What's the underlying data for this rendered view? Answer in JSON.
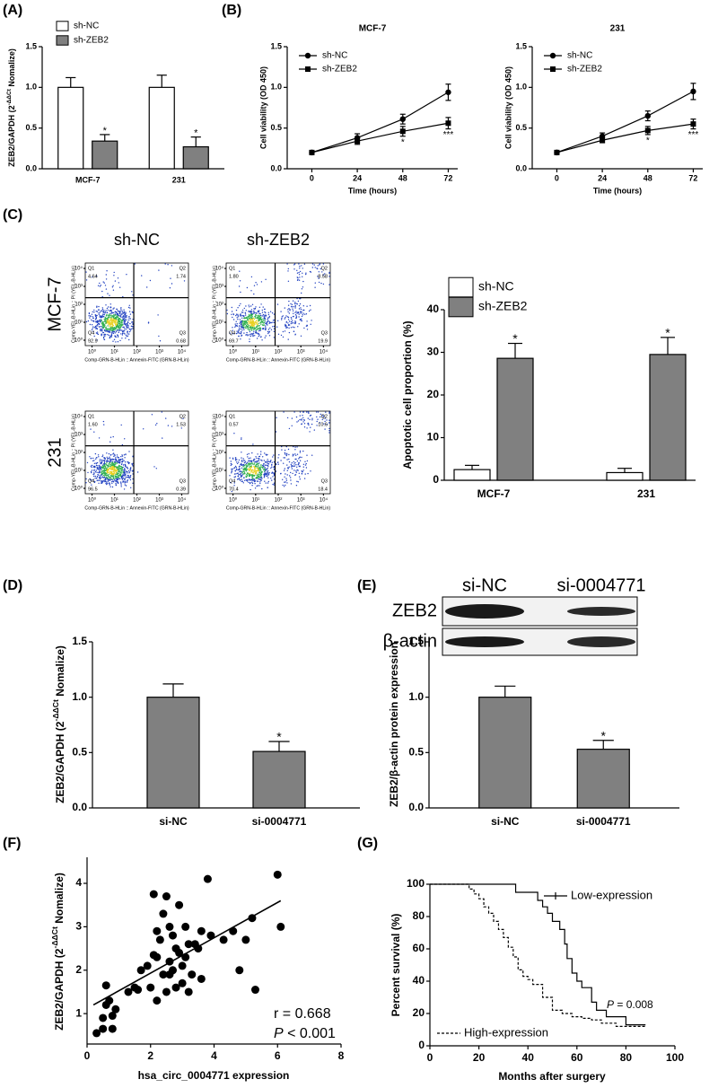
{
  "chart_data": [
    {
      "type": "bar",
      "panel": "(A)",
      "y_label": [
        "ZEB2/GAPDH (2",
        "-ΔΔCt",
        " Nomalize)"
      ],
      "categories": [
        "MCF-7",
        "231"
      ],
      "series": [
        {
          "name": "sh-NC",
          "color": "#ffffff",
          "values": [
            1.0,
            1.0
          ],
          "errors": [
            0.12,
            0.15
          ],
          "sig": [
            null,
            null
          ]
        },
        {
          "name": "sh-ZEB2",
          "color": "#808080",
          "values": [
            0.34,
            0.27
          ],
          "errors": [
            0.08,
            0.12
          ],
          "sig": [
            "*",
            "*"
          ]
        }
      ],
      "ylim": [
        0,
        1.5
      ],
      "yticks": [
        {
          "value": 0,
          "label": "0.0"
        },
        0.5,
        {
          "value": 1,
          "label": "1.0"
        },
        1.5
      ]
    },
    {
      "type": "line",
      "panel": "(B)",
      "title": "MCF-7",
      "x_label": "Time (hours)",
      "y_label": "Cell viability (OD 450)",
      "x": [
        0,
        24,
        48,
        72
      ],
      "series": [
        {
          "name": "sh-NC",
          "color": "#000000",
          "marker": "circle",
          "values": [
            0.2,
            0.38,
            0.61,
            0.94
          ],
          "errors": [
            0.02,
            0.05,
            0.06,
            0.1
          ],
          "sig": [
            null,
            null,
            null,
            null
          ]
        },
        {
          "name": "sh-ZEB2",
          "color": "#000000",
          "marker": "square",
          "values": [
            0.2,
            0.34,
            0.46,
            0.56
          ],
          "errors": [
            0.02,
            0.04,
            0.06,
            0.07
          ],
          "sig": [
            null,
            null,
            "*",
            "***"
          ]
        }
      ],
      "xlim": [
        -13,
        77
      ],
      "xticks": [
        0,
        24,
        48,
        72
      ],
      "ylim": [
        0,
        1.5
      ],
      "yticks": [
        {
          "value": 0,
          "label": "0.0"
        },
        0.5,
        {
          "value": 1,
          "label": "1.0"
        },
        1.5
      ]
    },
    {
      "type": "line",
      "title": "231",
      "x_label": "Time (hours)",
      "y_label": "Cell viability (OD 450)",
      "x": [
        0,
        24,
        48,
        72
      ],
      "series": [
        {
          "name": "sh-NC",
          "color": "#000000",
          "marker": "circle",
          "values": [
            0.2,
            0.4,
            0.65,
            0.95
          ],
          "errors": [
            0.02,
            0.04,
            0.06,
            0.1
          ],
          "sig": [
            null,
            null,
            null,
            null
          ]
        },
        {
          "name": "sh-ZEB2",
          "color": "#000000",
          "marker": "square",
          "values": [
            0.2,
            0.35,
            0.47,
            0.55
          ],
          "errors": [
            0.02,
            0.03,
            0.05,
            0.06
          ],
          "sig": [
            null,
            null,
            "*",
            "***"
          ]
        }
      ],
      "xlim": [
        -13,
        77
      ],
      "xticks": [
        0,
        24,
        48,
        72
      ],
      "ylim": [
        0,
        1.5
      ],
      "yticks": [
        {
          "value": 0,
          "label": "0.0"
        },
        0.5,
        {
          "value": 1,
          "label": "1.0"
        },
        1.5
      ]
    },
    {
      "type": "flow",
      "panel": "(C)",
      "columns": [
        "sh-NC",
        "sh-ZEB2"
      ],
      "rows": [
        "MCF-7",
        "231"
      ],
      "x_label": "Comp-GRN-B-HLin :: Annexin-FITC (GRN-B-HLin)",
      "y_label": "Comp-YEL-B-HLin :: PI (YEL-B-HLin)",
      "log": true,
      "xlim": [
        0.5,
        20000
      ],
      "ylim": [
        0.5,
        20000
      ],
      "ticks": [
        {
          "value": 1,
          "label": "10⁰"
        },
        {
          "value": 10,
          "label": "10¹"
        },
        {
          "value": 100,
          "label": "10²"
        },
        {
          "value": 1000,
          "label": "10³"
        },
        {
          "value": 10000,
          "label": "10⁴"
        }
      ],
      "plots": [
        {
          "quadrants": [
            {
              "name": "Q1",
              "value": 4.64
            },
            {
              "name": "Q2",
              "value": 1.74
            },
            {
              "name": "Q3",
              "value": 0.68
            },
            {
              "name": "Q4",
              "value": 92.9
            }
          ]
        },
        {
          "quadrants": [
            {
              "name": "Q1",
              "value": 1.8,
              "label": "1.80"
            },
            {
              "name": "Q2",
              "value": 8.58
            },
            {
              "name": "Q3",
              "value": 19.9
            },
            {
              "name": "Q4",
              "value": 69.7
            }
          ]
        },
        {
          "quadrants": [
            {
              "name": "Q1",
              "value": 1.6,
              "label": "1.60"
            },
            {
              "name": "Q2",
              "value": 1.53
            },
            {
              "name": "Q3",
              "value": 0.39
            },
            {
              "name": "Q4",
              "value": 96.5
            }
          ]
        },
        {
          "quadrants": [
            {
              "name": "Q1",
              "value": 0.57
            },
            {
              "name": "Q2",
              "value": 10.6
            },
            {
              "name": "Q3",
              "value": 18.4
            },
            {
              "name": "Q4",
              "value": 70.4
            }
          ]
        }
      ]
    },
    {
      "type": "bar",
      "y_label": "Apoptotic cell proportion (%)",
      "categories": [
        "MCF-7",
        "231"
      ],
      "series": [
        {
          "name": "sh-NC",
          "color": "#ffffff",
          "values": [
            2.5,
            1.8
          ],
          "errors": [
            1.0,
            1.0
          ],
          "sig": [
            null,
            null
          ]
        },
        {
          "name": "sh-ZEB2",
          "color": "#808080",
          "values": [
            28.6,
            29.5
          ],
          "errors": [
            3.5,
            4.0
          ],
          "sig": [
            "*",
            "*"
          ]
        }
      ],
      "ylim": [
        0,
        40
      ],
      "yticks": [
        0,
        10,
        20,
        30,
        40
      ]
    },
    {
      "type": "bar",
      "panel": "(D)",
      "y_label": [
        "ZEB2/GAPDH (2",
        "-ΔΔCt",
        " Nomalize)"
      ],
      "categories": [
        "si-NC",
        "si-0004771"
      ],
      "color": "#808080",
      "values": [
        1.0,
        0.51
      ],
      "errors": [
        0.12,
        0.09
      ],
      "sig": [
        null,
        "*"
      ],
      "ylim": [
        0,
        1.5
      ],
      "yticks": [
        {
          "value": 0,
          "label": "0.0"
        },
        0.5,
        {
          "value": 1,
          "label": "1.0"
        },
        1.5
      ]
    },
    {
      "type": "blot",
      "panel": "(E)",
      "lanes": [
        "si-NC",
        "si-0004771"
      ],
      "bands": [
        "ZEB2",
        "β-actin"
      ]
    },
    {
      "type": "bar",
      "y_label": "ZEB2/β-actin protein expression",
      "categories": [
        "si-NC",
        "si-0004771"
      ],
      "color": "#808080",
      "values": [
        1.0,
        0.53
      ],
      "errors": [
        0.1,
        0.08
      ],
      "sig": [
        null,
        "*"
      ],
      "ylim": [
        0,
        1.5
      ],
      "yticks": [
        {
          "value": 0,
          "label": "0.0"
        },
        0.5,
        {
          "value": 1,
          "label": "1.0"
        },
        1.5
      ]
    },
    {
      "type": "scatter",
      "panel": "(F)",
      "x_label": "hsa_circ_0004771 expression",
      "y_label": [
        "ZEB2/GAPDH (2",
        "-ΔΔCt",
        " Nomalize)"
      ],
      "x": [
        0.3,
        0.5,
        0.5,
        0.6,
        0.6,
        0.7,
        0.8,
        0.8,
        0.9,
        1.3,
        1.5,
        1.6,
        1.7,
        2.0,
        2.1,
        2.1,
        2.2,
        2.2,
        2.3,
        2.4,
        2.4,
        2.5,
        2.5,
        2.6,
        2.6,
        2.7,
        2.7,
        2.8,
        2.8,
        2.9,
        2.9,
        3.0,
        3.0,
        3.1,
        3.1,
        3.2,
        3.2,
        3.3,
        3.4,
        3.5,
        3.6,
        3.6,
        3.8,
        3.9,
        4.3,
        4.6,
        4.8,
        5.0,
        5.2,
        5.3,
        6.0,
        6.1,
        2.2,
        1.9,
        2.6
      ],
      "values": [
        0.55,
        0.65,
        0.9,
        1.2,
        1.65,
        1.3,
        0.65,
        0.95,
        1.1,
        1.5,
        1.6,
        1.55,
        2.0,
        1.6,
        2.35,
        3.75,
        2.3,
        1.3,
        2.7,
        3.3,
        1.9,
        1.5,
        3.7,
        2.2,
        1.9,
        2.8,
        2.0,
        2.5,
        1.6,
        3.5,
        2.4,
        2.1,
        1.7,
        3.0,
        2.3,
        1.5,
        2.6,
        1.9,
        2.6,
        2.5,
        2.9,
        1.8,
        4.1,
        2.8,
        2.7,
        2.9,
        2.0,
        2.7,
        3.2,
        1.55,
        4.2,
        3.0,
        2.9,
        2.1,
        3.0
      ],
      "fit": {
        "x": [
          0.2,
          6.1
        ],
        "y": [
          1.2,
          3.6
        ]
      },
      "r_text": "r = 0.668",
      "p_text": [
        "P",
        " < 0.001"
      ],
      "xlim": [
        0,
        8
      ],
      "xticks": [
        0,
        2,
        4,
        6,
        8
      ],
      "ylim": [
        0.3,
        4.6
      ],
      "yticks": [
        1,
        2,
        3,
        4
      ]
    },
    {
      "type": "survival",
      "panel": "(G)",
      "x_label": "Months after surgery",
      "y_label": "Percent survival (%)",
      "series": [
        {
          "name": "Low-expression",
          "color": "#000000",
          "dashed": false,
          "x": [
            0,
            35,
            44,
            46,
            48,
            50,
            53,
            55,
            56,
            58,
            60,
            62,
            66,
            68,
            72,
            80,
            88
          ],
          "values": [
            100,
            95,
            90,
            86,
            82,
            77,
            72,
            63,
            54,
            45,
            40,
            36,
            27,
            22,
            18,
            13,
            13
          ]
        },
        {
          "name": "High-expression",
          "color": "#000000",
          "dashed": true,
          "x": [
            0,
            16,
            18,
            20,
            22,
            24,
            26,
            28,
            30,
            32,
            34,
            36,
            38,
            40,
            42,
            46,
            50,
            54,
            58,
            62,
            66,
            70,
            76,
            88
          ],
          "values": [
            100,
            97,
            94,
            91,
            86,
            82,
            77,
            72,
            67,
            61,
            55,
            47,
            43,
            41,
            38,
            30,
            22,
            20,
            18,
            17,
            16,
            14,
            12,
            12
          ]
        }
      ],
      "p_text": [
        "P",
        " = 0.008"
      ],
      "xlim": [
        0,
        100
      ],
      "xticks": [
        0,
        20,
        40,
        60,
        80,
        100
      ],
      "ylim": [
        0,
        100
      ],
      "yticks": [
        0,
        20,
        40,
        60,
        80,
        100
      ]
    }
  ]
}
